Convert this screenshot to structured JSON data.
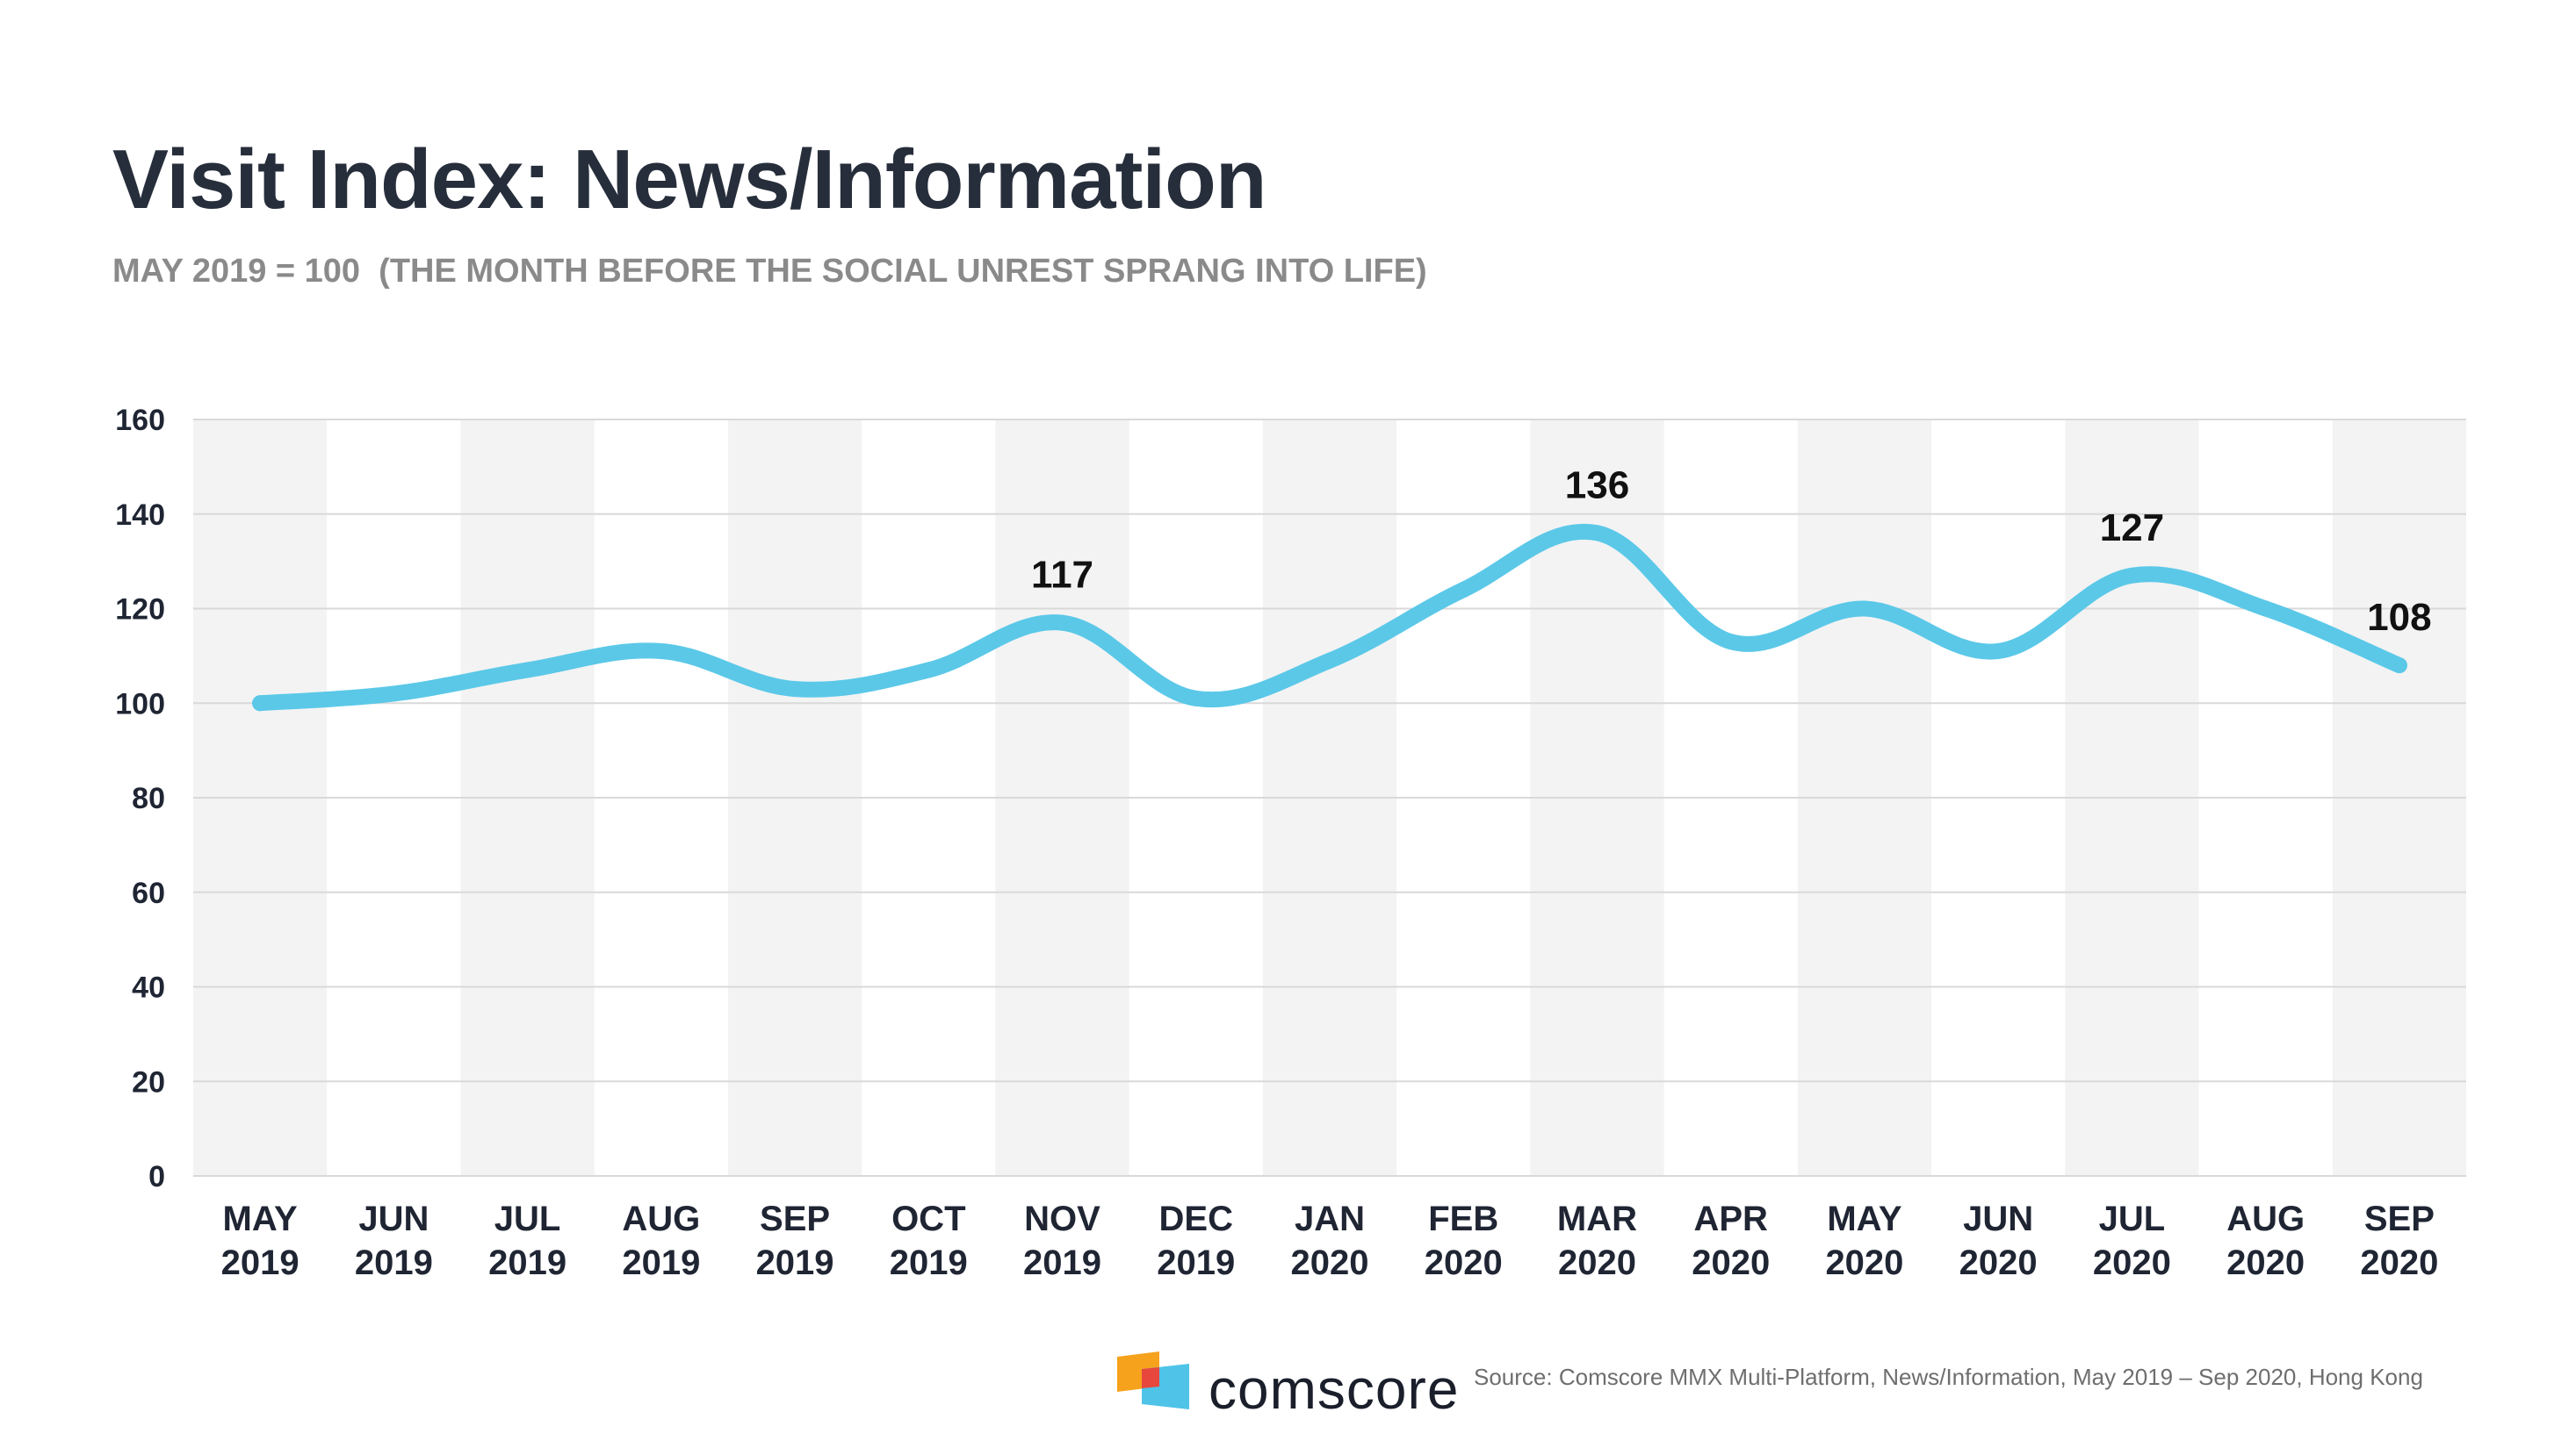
{
  "page": {
    "title": "Visit Index: News/Information",
    "subtitle": "MAY 2019 = 100  (THE MONTH BEFORE THE SOCIAL UNREST SPRANG INTO LIFE)"
  },
  "footer": {
    "brand": "comscore",
    "source": "Source: Comscore MMX Multi-Platform, News/Information, May 2019 – Sep 2020, Hong Kong",
    "logo_icon": "comscore-logo-icon",
    "logo_colors": [
      "#f6a21d",
      "#e8473d",
      "#4fc3e8"
    ]
  },
  "chart_data": {
    "type": "line",
    "title": "Visit Index: News/Information",
    "subtitle": "MAY 2019 = 100  (THE MONTH BEFORE THE SOCIAL UNREST SPRANG INTO LIFE)",
    "categories": [
      [
        "MAY",
        "2019"
      ],
      [
        "JUN",
        "2019"
      ],
      [
        "JUL",
        "2019"
      ],
      [
        "AUG",
        "2019"
      ],
      [
        "SEP",
        "2019"
      ],
      [
        "OCT",
        "2019"
      ],
      [
        "NOV",
        "2019"
      ],
      [
        "DEC",
        "2019"
      ],
      [
        "JAN",
        "2020"
      ],
      [
        "FEB",
        "2020"
      ],
      [
        "MAR",
        "2020"
      ],
      [
        "APR",
        "2020"
      ],
      [
        "MAY",
        "2020"
      ],
      [
        "JUN",
        "2020"
      ],
      [
        "JUL",
        "2020"
      ],
      [
        "AUG",
        "2020"
      ],
      [
        "SEP",
        "2020"
      ]
    ],
    "series": [
      {
        "values": [
          100,
          102,
          107,
          111,
          103,
          107,
          117,
          101,
          109,
          124,
          136,
          113,
          120,
          111,
          127,
          120,
          108
        ],
        "color": "#5bc8e8"
      }
    ],
    "data_labels": [
      {
        "index": 6,
        "text": "117"
      },
      {
        "index": 10,
        "text": "136"
      },
      {
        "index": 14,
        "text": "127"
      },
      {
        "index": 16,
        "text": "108"
      }
    ],
    "ylim": [
      0,
      160
    ],
    "yticks": [
      0,
      20,
      40,
      60,
      80,
      100,
      120,
      140,
      160
    ],
    "grid": true,
    "alternating_column_bands": true,
    "band_color": "#f3f3f3",
    "gridline_color": "#d9d9d9",
    "text_color": "#1f2533"
  }
}
